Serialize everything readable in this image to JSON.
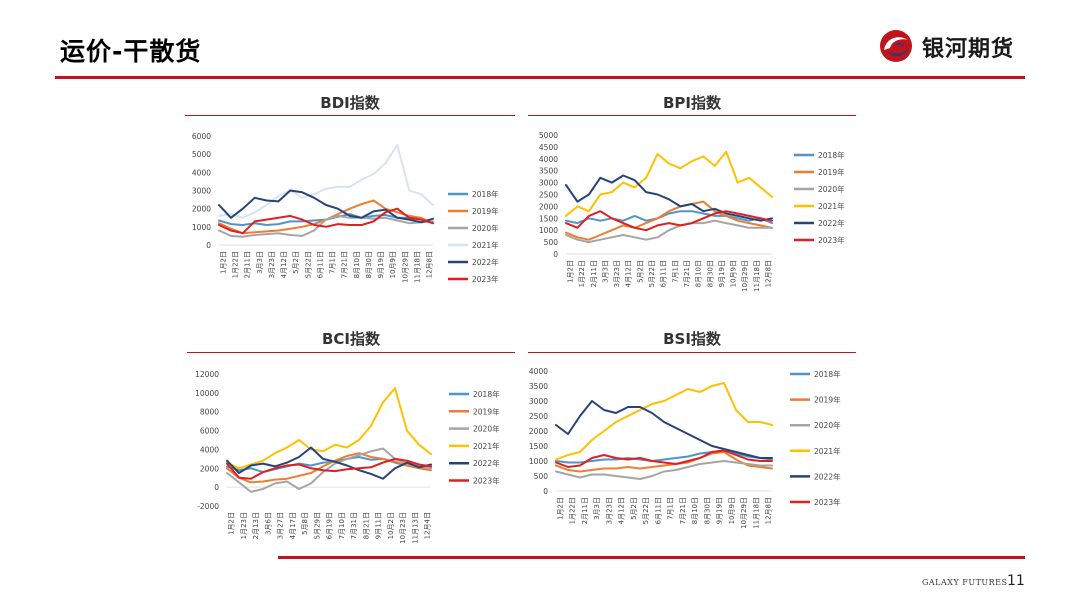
{
  "header": {
    "title": "运价-干散货"
  },
  "logo": {
    "name": "银河期货"
  },
  "footer": {
    "brand": "GALAXY FUTURES",
    "page": "11"
  },
  "colors": {
    "accent": "#c0141d",
    "s2018": "#4f94cd",
    "s2019": "#ed7d31",
    "s2020": "#a5a5a5",
    "s2021": "#ffc000",
    "s2022": "#264478",
    "s2023": "#e02020"
  },
  "chart_data": [
    {
      "id": "bdi",
      "type": "line",
      "title": "BDI指数",
      "yticks": [
        0,
        1000,
        2000,
        3000,
        4000,
        5000,
        6000
      ],
      "ylim": [
        0,
        6000
      ],
      "xticks": [
        "1月2日",
        "1月22日",
        "2月11日",
        "3月3日",
        "3月23日",
        "4月12日",
        "5月2日",
        "5月22日",
        "6月11日",
        "7月1日",
        "7月21日",
        "8月10日",
        "8月30日",
        "9月19日",
        "10月9日",
        "10月29日",
        "11月18日",
        "12月8日"
      ],
      "series": [
        {
          "name": "2018年",
          "color": "#4f94cd",
          "values": [
            1350,
            1150,
            1100,
            1200,
            1100,
            1150,
            1300,
            1300,
            1350,
            1400,
            1550,
            1700,
            1500,
            1600,
            1650,
            1500,
            1500,
            1400,
            1200
          ]
        },
        {
          "name": "2019年",
          "color": "#ed7d31",
          "values": [
            1200,
            900,
            650,
            700,
            750,
            800,
            900,
            1000,
            1150,
            1400,
            1700,
            2000,
            2250,
            2450,
            2000,
            1800,
            1600,
            1500,
            1200
          ]
        },
        {
          "name": "2020年",
          "color": "#a5a5a5",
          "values": [
            800,
            500,
            450,
            550,
            600,
            650,
            550,
            500,
            800,
            1400,
            1600,
            1500,
            1500,
            1450,
            1500,
            1350,
            1200,
            1250,
            1300
          ]
        },
        {
          "name": "2021年",
          "color": "#d6e4f2",
          "values": [
            1600,
            1700,
            1500,
            1800,
            2200,
            2700,
            3000,
            2600,
            2800,
            3100,
            3200,
            3200,
            3600,
            3900,
            4500,
            5500,
            3000,
            2800,
            2200
          ]
        },
        {
          "name": "2022年",
          "color": "#264478",
          "values": [
            2200,
            1500,
            2000,
            2600,
            2450,
            2400,
            3000,
            2900,
            2600,
            2200,
            2000,
            1600,
            1500,
            1850,
            1950,
            1500,
            1400,
            1250,
            1450
          ]
        },
        {
          "name": "2023年",
          "color": "#e02020",
          "values": [
            1100,
            800,
            650,
            1300,
            1400,
            1500,
            1600,
            1400,
            1100,
            1000,
            1150,
            1100,
            1100,
            1300,
            1800,
            2000,
            1500,
            1400,
            1200
          ]
        }
      ]
    },
    {
      "id": "bpi",
      "type": "line",
      "title": "BPI指数",
      "yticks": [
        0,
        500,
        1000,
        1500,
        2000,
        2500,
        3000,
        3500,
        4000,
        4500,
        5000
      ],
      "ylim": [
        0,
        5000
      ],
      "xticks": [
        "1月2日",
        "1月22日",
        "2月11日",
        "3月3日",
        "3月23日",
        "4月12日",
        "5月2日",
        "5月22日",
        "6月11日",
        "7月1日",
        "7月21日",
        "8月10日",
        "8月30日",
        "9月19日",
        "10月9日",
        "10月29日",
        "11月18日",
        "12月8日"
      ],
      "series": [
        {
          "name": "2018年",
          "color": "#4f94cd",
          "values": [
            1400,
            1300,
            1500,
            1400,
            1500,
            1400,
            1600,
            1400,
            1500,
            1700,
            1800,
            1800,
            1700,
            1600,
            1600,
            1500,
            1400,
            1500,
            1300
          ]
        },
        {
          "name": "2019年",
          "color": "#ed7d31",
          "values": [
            900,
            700,
            600,
            800,
            1000,
            1200,
            1100,
            1300,
            1500,
            1800,
            2000,
            2100,
            2200,
            1800,
            1600,
            1400,
            1300,
            1200,
            1100
          ]
        },
        {
          "name": "2020年",
          "color": "#a5a5a5",
          "values": [
            800,
            600,
            500,
            600,
            700,
            800,
            700,
            600,
            700,
            1000,
            1200,
            1300,
            1300,
            1400,
            1300,
            1200,
            1100,
            1100,
            1100
          ]
        },
        {
          "name": "2021年",
          "color": "#ffc000",
          "values": [
            1600,
            2000,
            1800,
            2500,
            2600,
            3000,
            2800,
            3200,
            4200,
            3800,
            3600,
            3900,
            4100,
            3700,
            4300,
            3000,
            3200,
            2800,
            2400
          ]
        },
        {
          "name": "2022年",
          "color": "#264478",
          "values": [
            2900,
            2200,
            2500,
            3200,
            3000,
            3300,
            3100,
            2600,
            2500,
            2300,
            2000,
            2100,
            1800,
            1900,
            1700,
            1600,
            1500,
            1400,
            1500
          ]
        },
        {
          "name": "2023年",
          "color": "#e02020",
          "values": [
            1300,
            1100,
            1600,
            1800,
            1500,
            1300,
            1100,
            1000,
            1200,
            1300,
            1200,
            1300,
            1500,
            1700,
            1800,
            1700,
            1600,
            1500,
            1400
          ]
        }
      ]
    },
    {
      "id": "bci",
      "type": "line",
      "title": "BCI指数",
      "yticks": [
        -2000,
        0,
        2000,
        4000,
        6000,
        8000,
        10000,
        12000
      ],
      "ylim": [
        -2000,
        12000
      ],
      "xticks": [
        "1月2日",
        "1月23日",
        "2月13日",
        "3月6日",
        "3月27日",
        "4月17日",
        "5月8日",
        "5月29日",
        "6月19日",
        "7月10日",
        "7月31日",
        "8月21日",
        "9月11日",
        "10月2日",
        "10月23日",
        "11月13日",
        "12月4日"
      ],
      "series": [
        {
          "name": "2018年",
          "color": "#4f94cd",
          "values": [
            2200,
            1800,
            2000,
            1600,
            1900,
            2200,
            2500,
            2300,
            2600,
            2700,
            3000,
            3200,
            2900,
            3000,
            2600,
            2300,
            2200,
            2100
          ]
        },
        {
          "name": "2019年",
          "color": "#ed7d31",
          "values": [
            2000,
            1000,
            500,
            600,
            800,
            900,
            1200,
            1500,
            2200,
            2800,
            3300,
            3600,
            3200,
            3000,
            2700,
            2300,
            2000,
            1800
          ]
        },
        {
          "name": "2020年",
          "color": "#a5a5a5",
          "values": [
            1500,
            500,
            -500,
            -200,
            400,
            600,
            -200,
            400,
            1600,
            2500,
            3000,
            3400,
            3800,
            4100,
            3000,
            2500,
            2200,
            2000
          ]
        },
        {
          "name": "2021年",
          "color": "#ffc000",
          "values": [
            2600,
            2000,
            2400,
            2800,
            3600,
            4200,
            5000,
            4000,
            3800,
            4500,
            4200,
            5000,
            6500,
            9000,
            10500,
            6000,
            4500,
            3500
          ]
        },
        {
          "name": "2022年",
          "color": "#264478",
          "values": [
            2800,
            1500,
            2300,
            2500,
            2200,
            2600,
            3200,
            4200,
            3000,
            2700,
            2300,
            1800,
            1400,
            900,
            2000,
            2600,
            2100,
            2400
          ]
        },
        {
          "name": "2023年",
          "color": "#e02020",
          "values": [
            2500,
            1000,
            900,
            1600,
            2000,
            2300,
            2400,
            2000,
            1800,
            1700,
            1900,
            2000,
            2100,
            2600,
            3000,
            2800,
            2400,
            2200
          ]
        }
      ]
    },
    {
      "id": "bsi",
      "type": "line",
      "title": "BSI指数",
      "yticks": [
        0,
        500,
        1000,
        1500,
        2000,
        2500,
        3000,
        3500,
        4000
      ],
      "ylim": [
        0,
        4000
      ],
      "xticks": [
        "1月2日",
        "1月22日",
        "2月11日",
        "3月3日",
        "3月23日",
        "4月12日",
        "5月2日",
        "5月22日",
        "6月11日",
        "7月1日",
        "7月21日",
        "8月10日",
        "8月30日",
        "9月19日",
        "10月9日",
        "10月29日",
        "11月18日",
        "12月8日"
      ],
      "series": [
        {
          "name": "2018年",
          "color": "#4f94cd",
          "values": [
            1000,
            950,
            950,
            1000,
            1050,
            1050,
            1100,
            1050,
            1000,
            1050,
            1100,
            1150,
            1250,
            1300,
            1350,
            1250,
            1150,
            1100,
            1050
          ]
        },
        {
          "name": "2019年",
          "color": "#ed7d31",
          "values": [
            850,
            700,
            650,
            700,
            750,
            750,
            800,
            750,
            800,
            850,
            900,
            950,
            1100,
            1250,
            1300,
            1050,
            850,
            800,
            750
          ]
        },
        {
          "name": "2020年",
          "color": "#a5a5a5",
          "values": [
            650,
            550,
            450,
            550,
            550,
            500,
            450,
            400,
            500,
            650,
            700,
            800,
            900,
            950,
            1000,
            950,
            900,
            850,
            850
          ]
        },
        {
          "name": "2021年",
          "color": "#ffc000",
          "values": [
            1050,
            1200,
            1300,
            1700,
            2000,
            2300,
            2500,
            2700,
            2900,
            3000,
            3200,
            3400,
            3300,
            3500,
            3600,
            2700,
            2300,
            2300,
            2200
          ]
        },
        {
          "name": "2022年",
          "color": "#264478",
          "values": [
            2200,
            1900,
            2500,
            3000,
            2700,
            2600,
            2800,
            2800,
            2600,
            2300,
            2100,
            1900,
            1700,
            1500,
            1400,
            1300,
            1200,
            1100,
            1100
          ]
        },
        {
          "name": "2023年",
          "color": "#e02020",
          "values": [
            950,
            800,
            850,
            1100,
            1200,
            1100,
            1050,
            1100,
            1000,
            950,
            900,
            1000,
            1100,
            1300,
            1350,
            1200,
            1050,
            1000,
            1000
          ]
        }
      ]
    }
  ]
}
